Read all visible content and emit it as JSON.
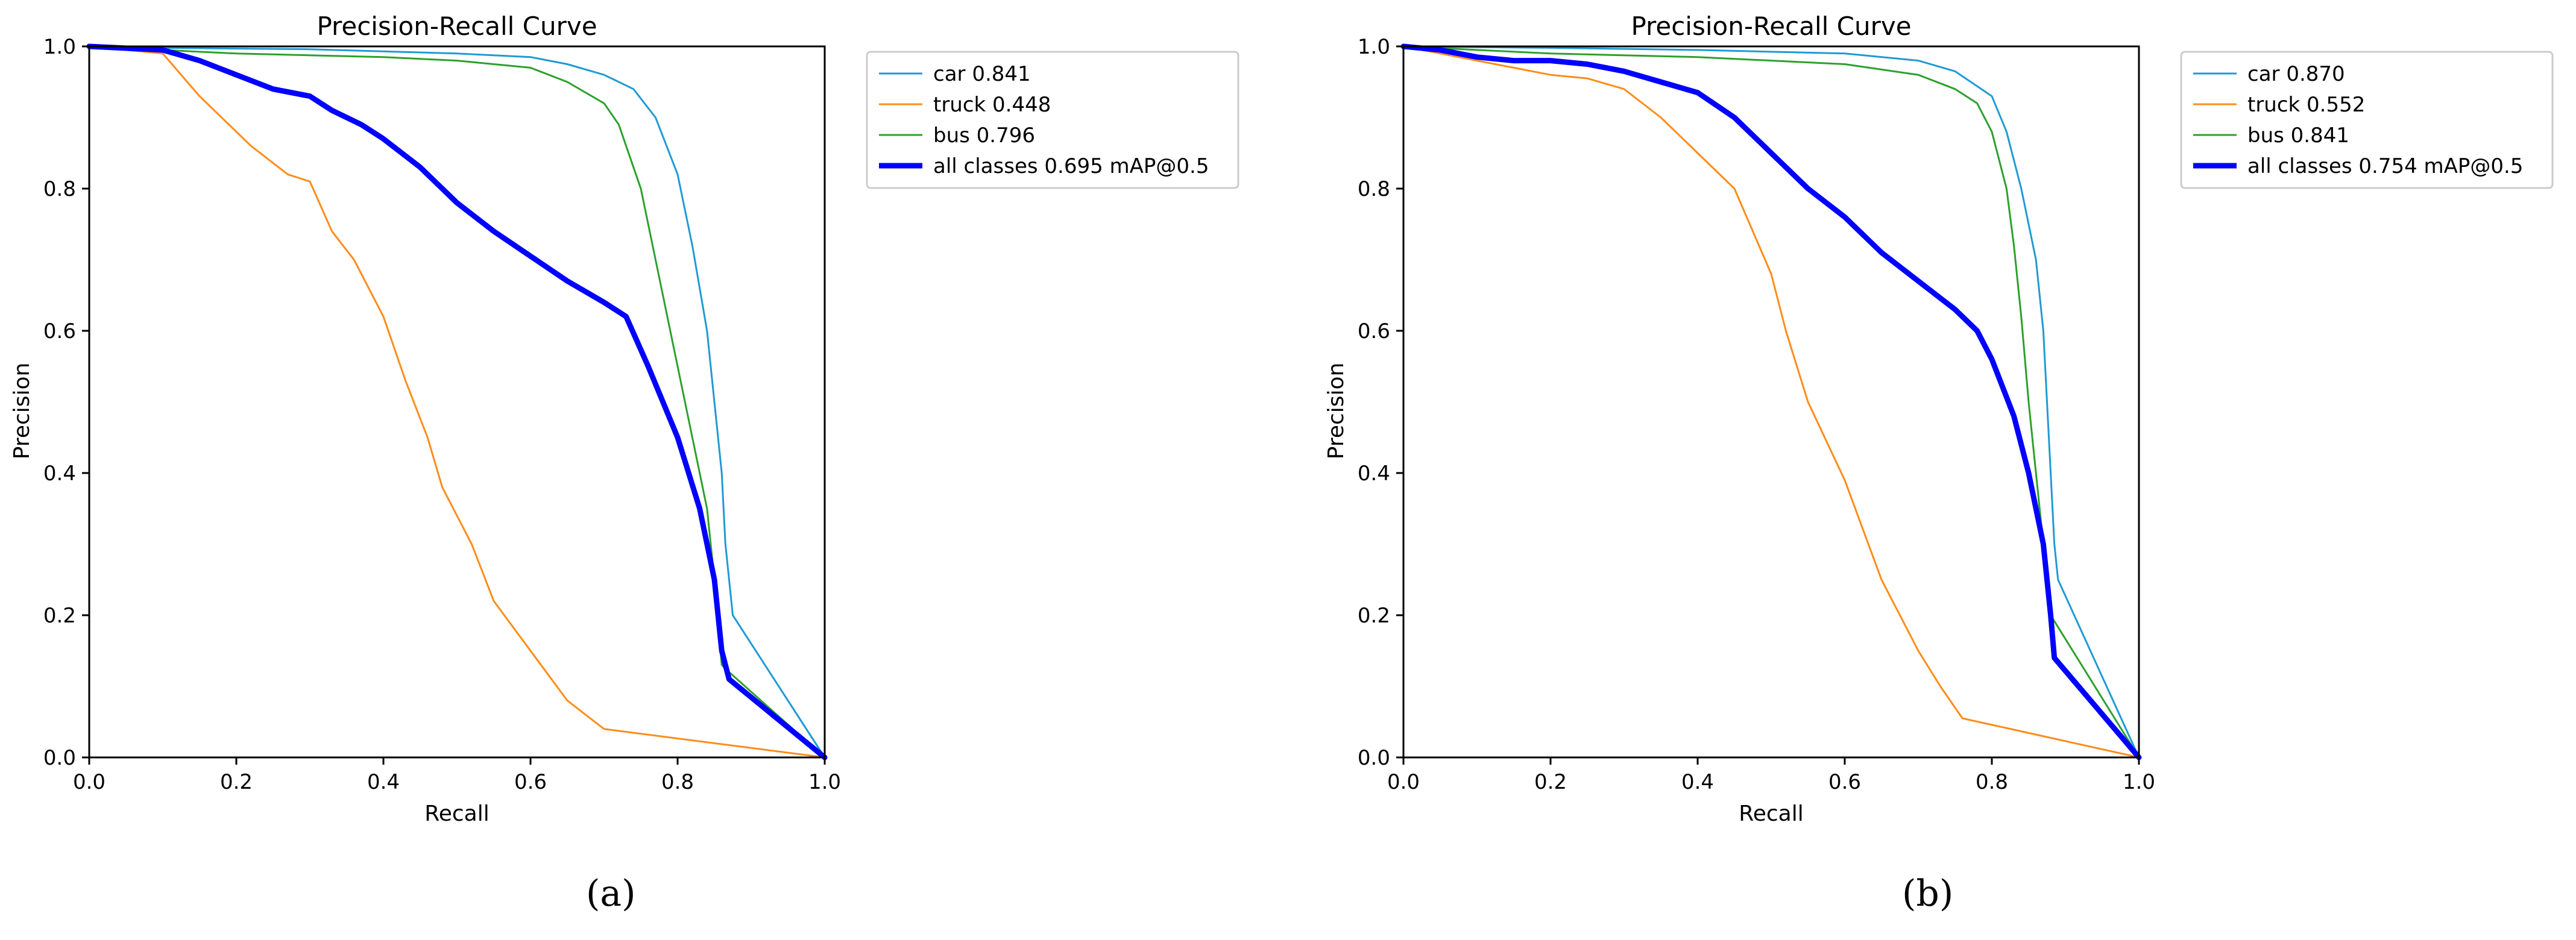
{
  "colors": {
    "car": "#1f9ad4",
    "truck": "#ff8c1a",
    "bus": "#2ca02c",
    "all_classes": "#0000ff"
  },
  "chart_data": [
    {
      "type": "line",
      "title": "Precision-Recall Curve",
      "xlabel": "Recall",
      "ylabel": "Precision",
      "xlim": [
        0,
        1
      ],
      "ylim": [
        0,
        1
      ],
      "xticks": [
        "0.0",
        "0.2",
        "0.4",
        "0.6",
        "0.8",
        "1.0"
      ],
      "yticks": [
        "0.0",
        "0.2",
        "0.4",
        "0.6",
        "0.8",
        "1.0"
      ],
      "grid": false,
      "legend_position": "outside-right-top",
      "panel_label": "(a)",
      "series": [
        {
          "name": "car 0.841",
          "color_key": "car",
          "line_width": "thin",
          "x": [
            0,
            0.1,
            0.3,
            0.5,
            0.6,
            0.65,
            0.7,
            0.74,
            0.77,
            0.8,
            0.82,
            0.84,
            0.85,
            0.86,
            0.865,
            0.87,
            0.875,
            1.0
          ],
          "y": [
            1.0,
            0.998,
            0.996,
            0.99,
            0.985,
            0.975,
            0.96,
            0.94,
            0.9,
            0.82,
            0.72,
            0.6,
            0.5,
            0.4,
            0.3,
            0.25,
            0.2,
            0.0
          ]
        },
        {
          "name": "truck 0.448",
          "color_key": "truck",
          "line_width": "thin",
          "x": [
            0,
            0.1,
            0.15,
            0.2,
            0.22,
            0.27,
            0.3,
            0.33,
            0.36,
            0.4,
            0.43,
            0.46,
            0.48,
            0.52,
            0.55,
            0.6,
            0.65,
            0.7,
            1.0
          ],
          "y": [
            1.0,
            0.99,
            0.93,
            0.88,
            0.86,
            0.82,
            0.81,
            0.74,
            0.7,
            0.62,
            0.53,
            0.45,
            0.38,
            0.3,
            0.22,
            0.15,
            0.08,
            0.04,
            0.0
          ]
        },
        {
          "name": "bus 0.796",
          "color_key": "bus",
          "line_width": "thin",
          "x": [
            0,
            0.2,
            0.4,
            0.5,
            0.55,
            0.6,
            0.65,
            0.7,
            0.72,
            0.75,
            0.77,
            0.8,
            0.82,
            0.84,
            0.85,
            0.86,
            0.87,
            1.0
          ],
          "y": [
            1.0,
            0.99,
            0.985,
            0.98,
            0.975,
            0.97,
            0.95,
            0.92,
            0.89,
            0.8,
            0.7,
            0.55,
            0.45,
            0.35,
            0.25,
            0.13,
            0.12,
            0.0
          ]
        },
        {
          "name": "all classes 0.695 mAP@0.5",
          "color_key": "all_classes",
          "line_width": "thick",
          "x": [
            0,
            0.1,
            0.15,
            0.2,
            0.25,
            0.3,
            0.33,
            0.37,
            0.4,
            0.45,
            0.5,
            0.55,
            0.6,
            0.65,
            0.7,
            0.73,
            0.76,
            0.8,
            0.83,
            0.85,
            0.86,
            0.87,
            1.0
          ],
          "y": [
            1.0,
            0.995,
            0.98,
            0.96,
            0.94,
            0.93,
            0.91,
            0.89,
            0.87,
            0.83,
            0.78,
            0.74,
            0.705,
            0.67,
            0.64,
            0.62,
            0.55,
            0.45,
            0.35,
            0.25,
            0.15,
            0.11,
            0.0
          ]
        }
      ]
    },
    {
      "type": "line",
      "title": "Precision-Recall Curve",
      "xlabel": "Recall",
      "ylabel": "Precision",
      "xlim": [
        0,
        1
      ],
      "ylim": [
        0,
        1
      ],
      "xticks": [
        "0.0",
        "0.2",
        "0.4",
        "0.6",
        "0.8",
        "1.0"
      ],
      "yticks": [
        "0.0",
        "0.2",
        "0.4",
        "0.6",
        "0.8",
        "1.0"
      ],
      "grid": false,
      "legend_position": "outside-right-top",
      "panel_label": "(b)",
      "series": [
        {
          "name": "car 0.870",
          "color_key": "car",
          "line_width": "thin",
          "x": [
            0,
            0.2,
            0.4,
            0.6,
            0.7,
            0.75,
            0.8,
            0.82,
            0.84,
            0.86,
            0.87,
            0.875,
            0.88,
            0.885,
            0.89,
            1.0
          ],
          "y": [
            1.0,
            0.998,
            0.995,
            0.99,
            0.98,
            0.965,
            0.93,
            0.88,
            0.8,
            0.7,
            0.6,
            0.5,
            0.4,
            0.3,
            0.25,
            0.0
          ]
        },
        {
          "name": "truck 0.552",
          "color_key": "truck",
          "line_width": "thin",
          "x": [
            0,
            0.1,
            0.2,
            0.25,
            0.3,
            0.35,
            0.4,
            0.45,
            0.5,
            0.52,
            0.55,
            0.6,
            0.65,
            0.7,
            0.73,
            0.76,
            1.0
          ],
          "y": [
            1.0,
            0.98,
            0.96,
            0.955,
            0.94,
            0.9,
            0.85,
            0.8,
            0.68,
            0.6,
            0.5,
            0.39,
            0.25,
            0.15,
            0.1,
            0.055,
            0.0
          ]
        },
        {
          "name": "bus 0.841",
          "color_key": "bus",
          "line_width": "thin",
          "x": [
            0,
            0.2,
            0.4,
            0.6,
            0.7,
            0.75,
            0.78,
            0.8,
            0.82,
            0.83,
            0.84,
            0.85,
            0.86,
            0.87,
            0.88,
            1.0
          ],
          "y": [
            1.0,
            0.99,
            0.985,
            0.975,
            0.96,
            0.94,
            0.92,
            0.88,
            0.8,
            0.72,
            0.62,
            0.5,
            0.4,
            0.3,
            0.2,
            0.0
          ]
        },
        {
          "name": "all classes 0.754 mAP@0.5",
          "color_key": "all_classes",
          "line_width": "thick",
          "x": [
            0,
            0.05,
            0.1,
            0.15,
            0.2,
            0.25,
            0.3,
            0.35,
            0.4,
            0.45,
            0.5,
            0.55,
            0.6,
            0.65,
            0.7,
            0.75,
            0.78,
            0.8,
            0.83,
            0.85,
            0.87,
            0.88,
            0.885,
            1.0
          ],
          "y": [
            1.0,
            0.995,
            0.985,
            0.98,
            0.98,
            0.975,
            0.965,
            0.95,
            0.935,
            0.9,
            0.85,
            0.8,
            0.76,
            0.71,
            0.67,
            0.63,
            0.6,
            0.56,
            0.48,
            0.4,
            0.3,
            0.2,
            0.14,
            0.0
          ]
        }
      ]
    }
  ]
}
